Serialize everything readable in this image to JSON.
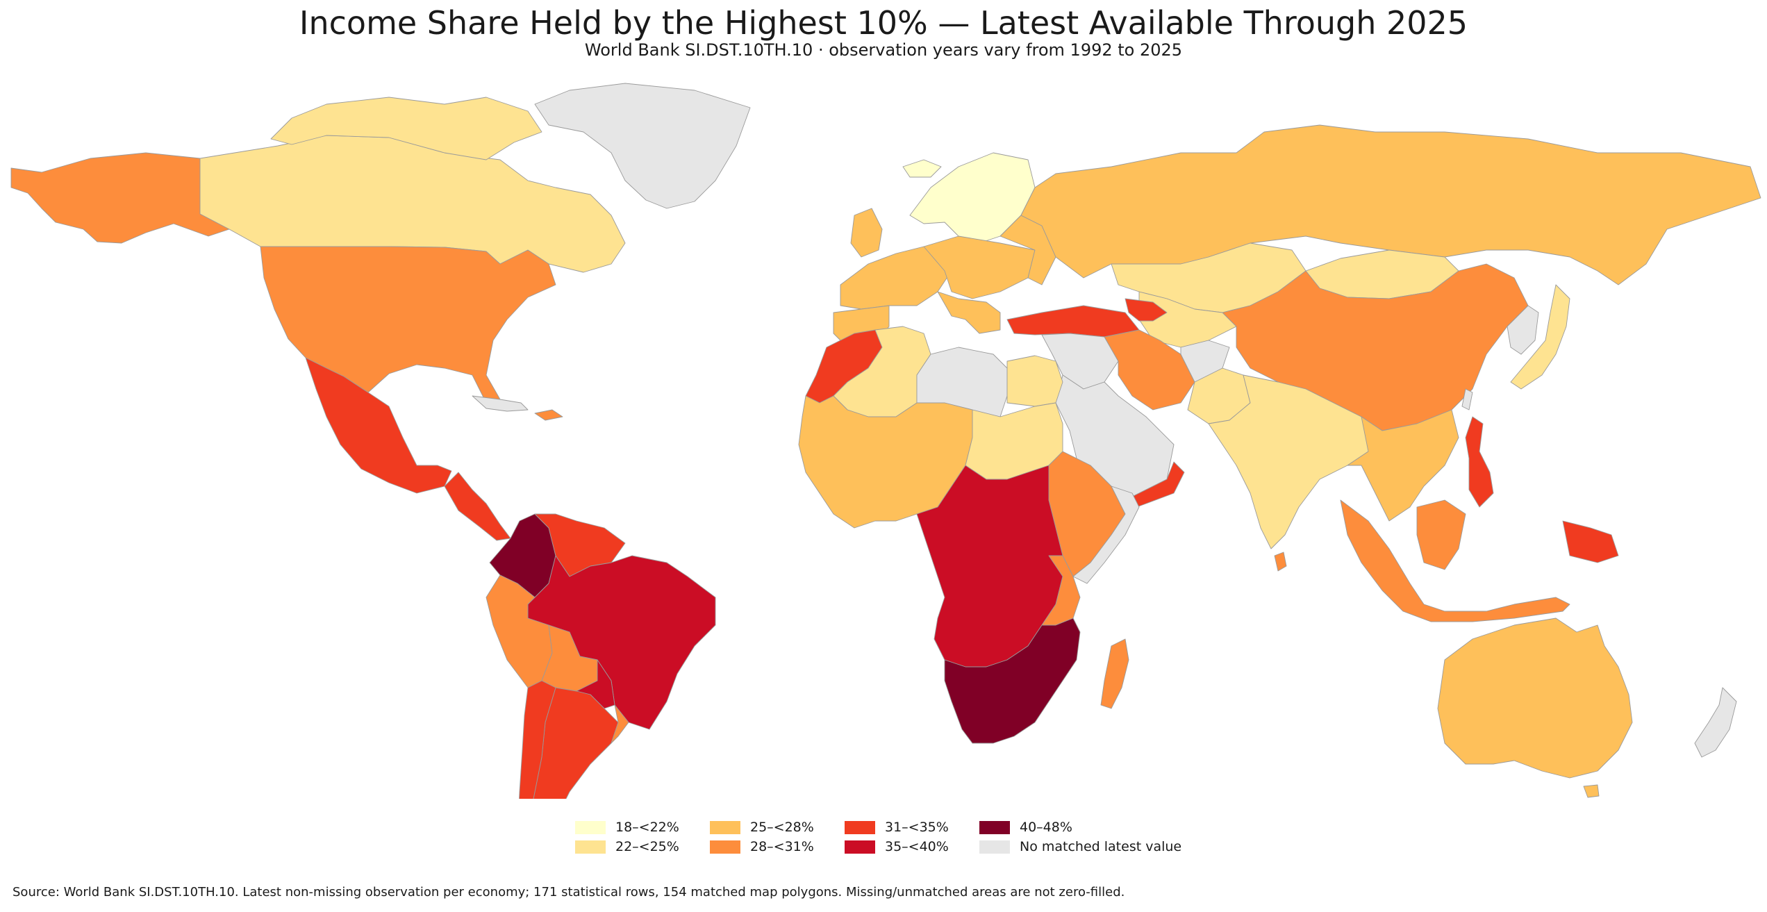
{
  "title": "Income Share Held by the Highest 10% — Latest Available Through 2025",
  "subtitle": "World Bank SI.DST.10TH.10 · observation years vary from 1992 to 2025",
  "source": "Source: World Bank SI.DST.10TH.10. Latest non-missing observation per economy; 171 statistical rows, 154 matched map polygons. Missing/unmatched areas are not zero-filled.",
  "legend": {
    "bins": [
      {
        "label": "18–<22%",
        "color": "#ffffcc"
      },
      {
        "label": "22–<25%",
        "color": "#fee391"
      },
      {
        "label": "25–<28%",
        "color": "#fec05a"
      },
      {
        "label": "28–<31%",
        "color": "#fd8d3c"
      },
      {
        "label": "31–<35%",
        "color": "#f03b20"
      },
      {
        "label": "35–<40%",
        "color": "#cb0d25"
      },
      {
        "label": "40–48%",
        "color": "#800026"
      }
    ],
    "missing": {
      "label": "No matched latest value",
      "color": "#e6e6e6"
    }
  },
  "regions": [
    {
      "name": "Alaska (United States)",
      "bin": 3
    },
    {
      "name": "Canada",
      "bin": 1
    },
    {
      "name": "United States",
      "bin": 3
    },
    {
      "name": "Greenland",
      "bin": -1
    },
    {
      "name": "Mexico",
      "bin": 4
    },
    {
      "name": "Central America",
      "bin": 4
    },
    {
      "name": "Colombia",
      "bin": 6
    },
    {
      "name": "Venezuela",
      "bin": 4
    },
    {
      "name": "Brazil",
      "bin": 5
    },
    {
      "name": "Peru",
      "bin": 3
    },
    {
      "name": "Bolivia",
      "bin": 3
    },
    {
      "name": "Argentina",
      "bin": 4
    },
    {
      "name": "Chile",
      "bin": 4
    },
    {
      "name": "Paraguay",
      "bin": 5
    },
    {
      "name": "Russia",
      "bin": 2
    },
    {
      "name": "Europe",
      "bin": 2
    },
    {
      "name": "Scandinavia",
      "bin": 0
    },
    {
      "name": "Kazakhstan",
      "bin": 1
    },
    {
      "name": "China",
      "bin": 3
    },
    {
      "name": "Mongolia",
      "bin": 1
    },
    {
      "name": "India",
      "bin": 1
    },
    {
      "name": "Iran",
      "bin": 3
    },
    {
      "name": "Turkey",
      "bin": 4
    },
    {
      "name": "Arabian Peninsula",
      "bin": -1
    },
    {
      "name": "Afghanistan",
      "bin": -1
    },
    {
      "name": "Libya",
      "bin": -1
    },
    {
      "name": "North Africa",
      "bin": 1
    },
    {
      "name": "Morocco",
      "bin": 4
    },
    {
      "name": "West Africa",
      "bin": 2
    },
    {
      "name": "Central Africa",
      "bin": 5
    },
    {
      "name": "East Africa",
      "bin": 3
    },
    {
      "name": "Southern Africa",
      "bin": 6
    },
    {
      "name": "Madagascar",
      "bin": 3
    },
    {
      "name": "Southeast Asia",
      "bin": 2
    },
    {
      "name": "Philippines",
      "bin": 4
    },
    {
      "name": "Indonesia",
      "bin": 3
    },
    {
      "name": "Papua New Guinea",
      "bin": 4
    },
    {
      "name": "Australia",
      "bin": 2
    },
    {
      "name": "New Zealand",
      "bin": -1
    },
    {
      "name": "Japan",
      "bin": 1
    }
  ]
}
